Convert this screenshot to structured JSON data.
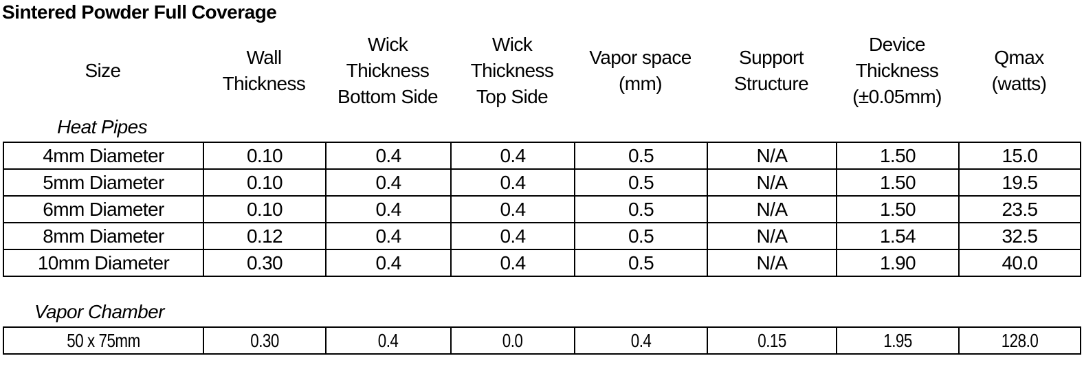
{
  "title": "Sintered Powder Full Coverage",
  "table": {
    "headers": [
      "Size",
      "Wall\nThickness",
      "Wick\nThickness\nBottom Side",
      "Wick\nThickness\nTop Side",
      "Vapor space\n(mm)",
      "Support\nStructure",
      "Device\nThickness\n(±0.05mm)",
      "Qmax\n(watts)"
    ],
    "sections": [
      {
        "label": "Heat Pipes",
        "rows": [
          [
            "4mm Diameter",
            "0.10",
            "0.4",
            "0.4",
            "0.5",
            "N/A",
            "1.50",
            "15.0"
          ],
          [
            "5mm Diameter",
            "0.10",
            "0.4",
            "0.4",
            "0.5",
            "N/A",
            "1.50",
            "19.5"
          ],
          [
            "6mm Diameter",
            "0.10",
            "0.4",
            "0.4",
            "0.5",
            "N/A",
            "1.50",
            "23.5"
          ],
          [
            "8mm Diameter",
            "0.12",
            "0.4",
            "0.4",
            "0.5",
            "N/A",
            "1.54",
            "32.5"
          ],
          [
            "10mm Diameter",
            "0.30",
            "0.4",
            "0.4",
            "0.5",
            "N/A",
            "1.90",
            "40.0"
          ]
        ]
      },
      {
        "label": "Vapor Chamber",
        "rows": [
          [
            "50 x 75mm",
            "0.30",
            "0.4",
            "0.0",
            "0.4",
            "0.15",
            "1.95",
            "128.0"
          ]
        ]
      }
    ]
  },
  "colors": {
    "text": "#000000",
    "background": "#ffffff",
    "border": "#000000"
  }
}
